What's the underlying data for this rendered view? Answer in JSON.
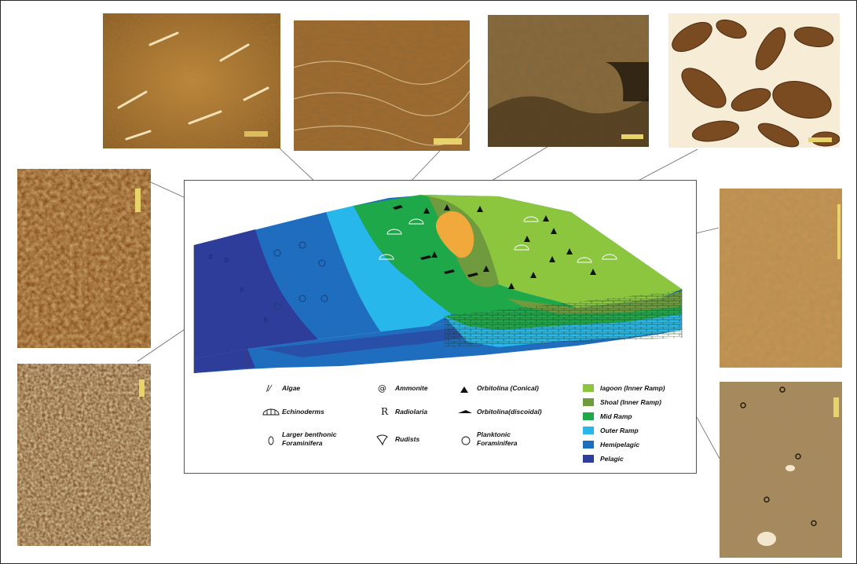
{
  "figure": {
    "thin_sections": [
      {
        "id": "top-1",
        "tone": "light-brown"
      },
      {
        "id": "top-2",
        "tone": "brown"
      },
      {
        "id": "top-3",
        "tone": "dark-brown"
      },
      {
        "id": "top-4",
        "tone": "peloidal"
      },
      {
        "id": "left-1",
        "tone": "orange-brown"
      },
      {
        "id": "left-2",
        "tone": "dark-brown-spotted"
      },
      {
        "id": "right-1",
        "tone": "tan"
      },
      {
        "id": "right-2",
        "tone": "tan-spotted"
      }
    ],
    "fossil_legend": [
      {
        "icon": "algae-icon",
        "symbol": "/⁄",
        "label": "Algae"
      },
      {
        "icon": "ammonite-icon",
        "symbol": "@",
        "label": "Ammonite"
      },
      {
        "icon": "orbitolina-conical-icon",
        "symbol": "▲",
        "label": "Orbitolina (Conical)"
      },
      {
        "icon": "echinoderms-icon",
        "symbol": "◠",
        "label": "Echinoderms"
      },
      {
        "icon": "radiolaria-icon",
        "symbol": "R",
        "label": "Radiolaria"
      },
      {
        "icon": "orbitolina-discoidal-icon",
        "symbol": "▬",
        "label": "Orbitolina(discoidal)"
      },
      {
        "icon": "larger-benthonic-icon",
        "symbol": "()",
        "label": "Larger benthonic",
        "label2": "Foraminifera"
      },
      {
        "icon": "rudists-icon",
        "symbol": "𝒫",
        "label": "Rudists"
      },
      {
        "icon": "planktonic-icon",
        "symbol": "⊛",
        "label": "Planktonic",
        "label2": "Foraminifera"
      }
    ],
    "facies_legend": [
      {
        "label": "lagoon (Inner Ramp)",
        "color": "#8cc63f"
      },
      {
        "label": "Shoal (Inner Ramp)",
        "color": "#6f9a3e"
      },
      {
        "label": "Mid Ramp",
        "color": "#1fa84a"
      },
      {
        "label": "Outer Ramp",
        "color": "#27b7ea"
      },
      {
        "label": "Hemipelagic",
        "color": "#1f6dbf"
      },
      {
        "label": "Pelagic",
        "color": "#2e3d9a"
      }
    ],
    "shoal_color": "#f2a93b"
  }
}
